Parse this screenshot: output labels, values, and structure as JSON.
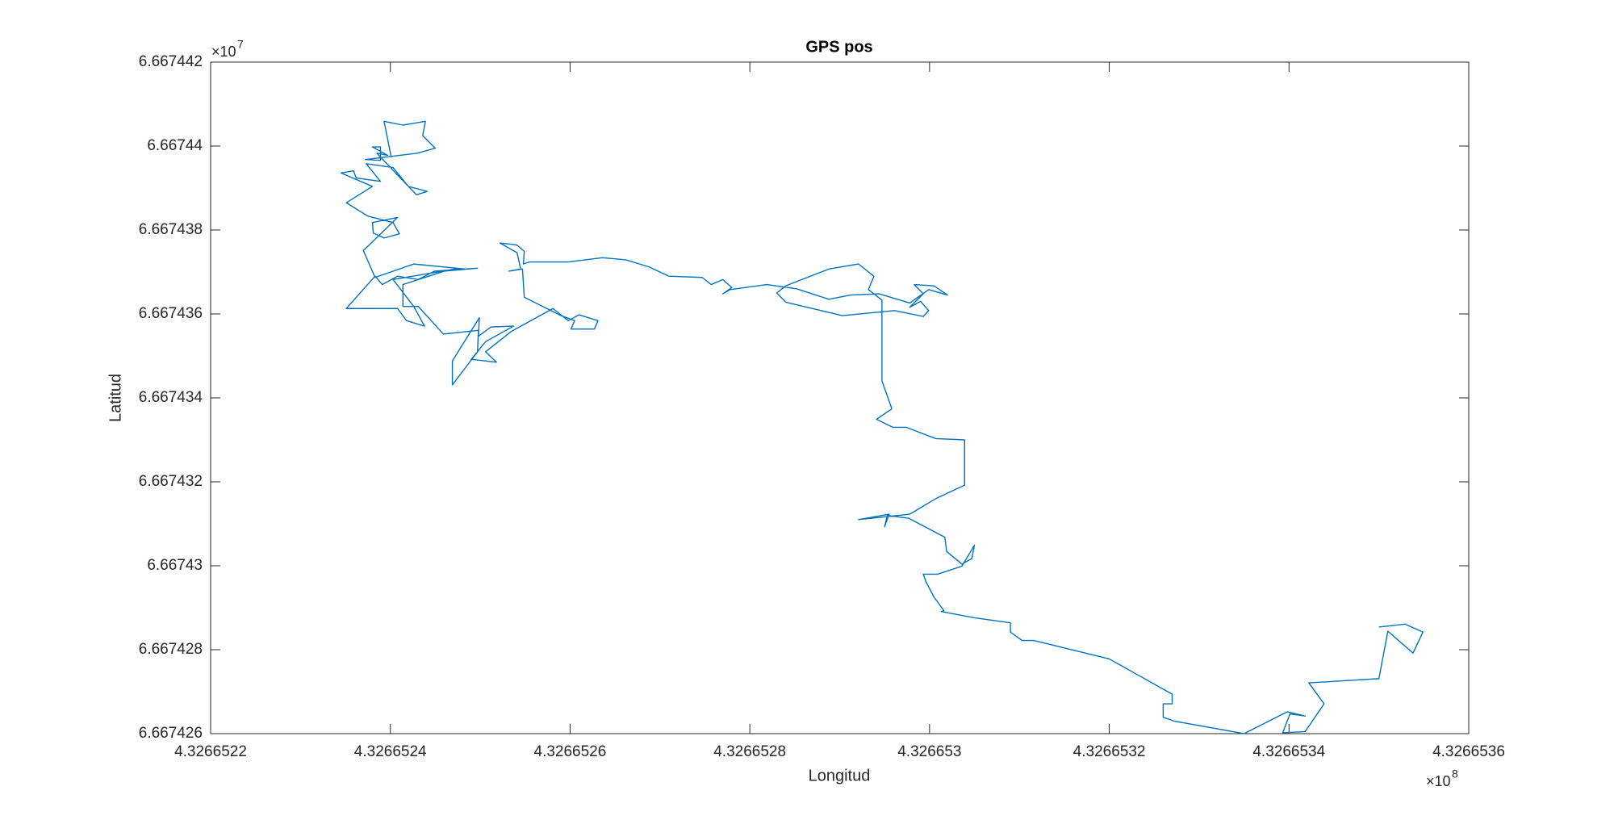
{
  "chart_data": {
    "type": "line",
    "title": "GPS pos",
    "x_label": "Longitud",
    "y_label": "Latitud",
    "x_multiplier": {
      "base": "×10",
      "power": "8"
    },
    "y_multiplier": {
      "base": "×10",
      "power": "7"
    },
    "color": "#0072bd",
    "xlim": [
      4.3266522,
      4.3266536
    ],
    "xticks": [
      4.3266522,
      4.3266524,
      4.3266526,
      4.3266528,
      4.326653,
      4.3266532,
      4.3266534,
      4.3266536
    ],
    "ylim": [
      6.667426,
      6.667442
    ],
    "yticks": [
      6.667426,
      6.667428,
      6.66743,
      6.667432,
      6.667434,
      6.667436,
      6.667438,
      6.66744,
      6.667442
    ],
    "x": [
      4.3266535,
      4.326653529,
      4.326653549,
      4.326653538,
      4.32665351,
      4.3266535,
      4.326653422,
      4.326653439,
      4.326653418,
      4.326653393,
      4.326653401,
      4.326653418,
      4.326653398,
      4.32665335,
      4.326653272,
      4.32665326,
      4.32665326,
      4.32665327,
      4.32665327,
      4.3266532,
      4.326653116,
      4.326653103,
      4.32665309,
      4.32665309,
      4.32665305,
      4.326653013,
      4.326653016,
      4.326653005,
      4.326652996,
      4.326652993,
      4.326653009,
      4.326653036,
      4.32665305,
      4.326653047,
      4.326653036,
      4.326653019,
      4.326653017,
      4.326652977,
      4.326652953,
      4.32665295,
      4.326652955,
      4.326652921,
      4.326652978,
      4.326653007,
      4.326653039,
      4.326653039,
      4.326653007,
      4.326652974,
      4.326652959,
      4.326652941,
      4.326652958,
      4.326652947,
      4.326652947,
      4.326652932,
      4.326652938,
      4.326652921,
      4.326652888,
      4.32665284,
      4.32665283,
      4.32665284,
      4.326652903,
      4.326652961,
      4.326652993,
      4.326652999,
      4.32665299,
      4.326652978,
      4.326652993,
      4.326652983,
      4.326653005,
      4.32665302,
      4.326652999,
      4.326652978,
      4.326652944,
      4.326652912,
      4.326652888,
      4.326652852,
      4.326652819,
      4.326652778,
      4.32665277,
      4.32665278,
      4.32665277,
      4.326652757,
      4.326652747,
      4.32665271,
      4.326652688,
      4.326652662,
      4.326652636,
      4.326652598,
      4.326652555,
      4.326652548,
      4.326652549,
      4.326652541,
      4.326652535,
      4.326652522,
      4.326652541,
      4.326652545,
      4.326652532,
      4.326652547,
      4.326652549,
      4.32665259,
      4.326652605,
      4.326652601,
      4.326652627,
      4.326652631,
      4.32665261,
      4.326652598,
      4.326652581,
      4.326652535,
      4.326652506,
      4.326652518,
      4.32665249,
      4.326652506,
      4.326652537,
      4.326652512,
      4.326652498,
      4.326652499,
      4.326652469,
      4.326652469,
      4.326652497,
      4.326652498,
      4.326652459,
      4.326652431,
      4.326652414,
      4.326652414,
      4.32665246,
      4.326652497,
      4.326652449,
      4.326652431,
      4.326652408,
      4.326652391,
      4.326652383,
      4.326652351,
      4.326652408,
      4.326652418,
      4.326652438,
      4.326652426,
      4.326652403,
      4.326652472,
      4.326652483,
      4.326652426,
      4.326652383,
      4.32665237,
      4.326652408,
      4.32665238,
      4.326652381,
      4.326652393,
      4.32665241,
      4.326652403,
      4.326652375,
      4.326652351,
      4.32665238,
      4.326652345,
      4.326652359,
      4.326652362,
      4.326652389,
      4.326652373,
      4.326652403,
      4.32665242,
      4.326652441,
      4.326652429,
      4.326652385,
      4.326652397,
      4.32665238,
      4.326652389,
      4.326652389,
      4.326652372,
      4.32665243,
      4.32665245,
      4.326652436,
      4.326652439,
      4.326652414,
      4.326652393,
      4.326652401
    ],
    "values": [
      6.66742854,
      6.66742861,
      6.66742842,
      6.66742792,
      6.66742844,
      6.66742731,
      6.66742721,
      6.66742671,
      6.66742605,
      6.66742602,
      6.66742647,
      6.66742642,
      6.66742652,
      6.667426,
      6.6674263,
      6.66742639,
      6.66742671,
      6.66742671,
      6.66742694,
      6.66742778,
      6.66742822,
      6.66742822,
      6.66742842,
      6.66742864,
      6.66742876,
      6.66742891,
      6.66742893,
      6.66742925,
      6.66742962,
      6.6674298,
      6.6674298,
      6.66742999,
      6.66743049,
      6.66743017,
      6.66743004,
      6.66743034,
      6.66743068,
      6.66743113,
      6.6674312,
      6.66743093,
      6.66743123,
      6.6674311,
      6.66743123,
      6.6674316,
      6.66743192,
      6.667433,
      6.66743303,
      6.6674333,
      6.6674333,
      6.66743349,
      6.66743374,
      6.66743441,
      6.66743633,
      6.66743658,
      6.6674369,
      6.66743719,
      6.66743707,
      6.66743667,
      6.6674365,
      6.66743628,
      6.66743596,
      6.66743608,
      6.66743594,
      6.66743608,
      6.6674363,
      6.66743616,
      6.66743648,
      6.6674367,
      6.66743667,
      6.66743645,
      6.66743658,
      6.66743626,
      6.66743648,
      6.66743645,
      6.66743635,
      6.6674366,
      6.6674367,
      6.66743658,
      6.66743648,
      6.66743663,
      6.66743682,
      6.6674367,
      6.66743687,
      6.6674369,
      6.66743712,
      6.66743729,
      6.66743734,
      6.66743724,
      6.66743724,
      6.66743719,
      6.66743749,
      6.66743764,
      6.66743766,
      6.66743769,
      6.66743746,
      6.66743707,
      6.66743702,
      6.66743707,
      6.6674364,
      6.66743596,
      6.66743584,
      6.66743564,
      6.66743564,
      6.66743584,
      6.66743598,
      6.66743584,
      6.66743613,
      6.66743559,
      6.6674351,
      6.66743485,
      6.66743492,
      6.66743534,
      6.66743571,
      6.66743569,
      6.66743547,
      6.66743591,
      6.66743488,
      6.66743431,
      6.6674351,
      6.66743561,
      6.66743552,
      6.66743618,
      6.66743618,
      6.6674367,
      6.66743702,
      6.66743709,
      6.66743702,
      6.66743682,
      6.6674369,
      6.6674367,
      6.6674369,
      6.66743613,
      6.66743613,
      6.66743584,
      6.66743571,
      6.66743618,
      6.66743682,
      6.66743707,
      6.66743707,
      6.66743719,
      6.66743687,
      6.66743751,
      6.6674383,
      6.66743818,
      6.66743793,
      6.66743781,
      6.66743791,
      6.66743818,
      6.66743833,
      6.66743865,
      6.66743904,
      6.66743936,
      6.66743941,
      6.66743924,
      6.66743916,
      6.66743958,
      6.66743949,
      6.66743904,
      6.66743892,
      6.66743884,
      6.66743983,
      6.66743978,
      6.66743998,
      6.66743998,
      6.66743966,
      6.66743968,
      6.66743983,
      6.66743995,
      6.66744025,
      6.66744059,
      6.6674405,
      6.66744059,
      6.66743973
    ]
  }
}
